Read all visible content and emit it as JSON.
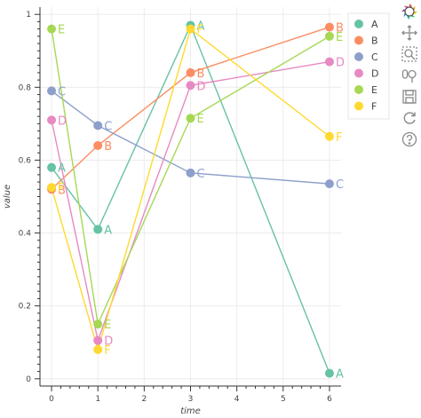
{
  "chart_data": {
    "type": "line",
    "xlabel": "time",
    "ylabel": "value",
    "xlim": [
      -0.25,
      6.25
    ],
    "ylim": [
      -0.02,
      1.02
    ],
    "x_ticks": [
      "0",
      "1",
      "2",
      "3",
      "4",
      "5",
      "6"
    ],
    "y_ticks": [
      "0",
      "0.2",
      "0.4",
      "0.6",
      "0.8",
      "1"
    ],
    "grid": true,
    "legend_position": "top-right",
    "series": [
      {
        "name": "A",
        "color": "#66c2a5",
        "x": [
          0,
          1,
          3,
          6
        ],
        "y": [
          0.58,
          0.41,
          0.97,
          0.015
        ]
      },
      {
        "name": "B",
        "color": "#fc8d62",
        "x": [
          0,
          1,
          3,
          6
        ],
        "y": [
          0.52,
          0.64,
          0.84,
          0.965
        ]
      },
      {
        "name": "C",
        "color": "#8da0cb",
        "x": [
          0,
          1,
          3,
          6
        ],
        "y": [
          0.79,
          0.695,
          0.565,
          0.535
        ]
      },
      {
        "name": "D",
        "color": "#e78ac3",
        "x": [
          0,
          1,
          3,
          6
        ],
        "y": [
          0.71,
          0.105,
          0.805,
          0.87
        ]
      },
      {
        "name": "E",
        "color": "#a6d854",
        "x": [
          0,
          1,
          3,
          6
        ],
        "y": [
          0.96,
          0.15,
          0.715,
          0.94
        ]
      },
      {
        "name": "F",
        "color": "#ffd92f",
        "x": [
          0,
          1,
          3,
          6
        ],
        "y": [
          0.525,
          0.08,
          0.96,
          0.665
        ]
      }
    ]
  },
  "toolbar": {
    "tools": [
      {
        "name": "bokeh-logo-icon",
        "interactable": false
      },
      {
        "name": "pan-icon",
        "interactable": true
      },
      {
        "name": "box-zoom-icon",
        "interactable": true
      },
      {
        "name": "wheel-zoom-icon",
        "interactable": true
      },
      {
        "name": "save-icon",
        "interactable": true
      },
      {
        "name": "reset-icon",
        "interactable": true
      },
      {
        "name": "help-icon",
        "interactable": true
      }
    ]
  }
}
